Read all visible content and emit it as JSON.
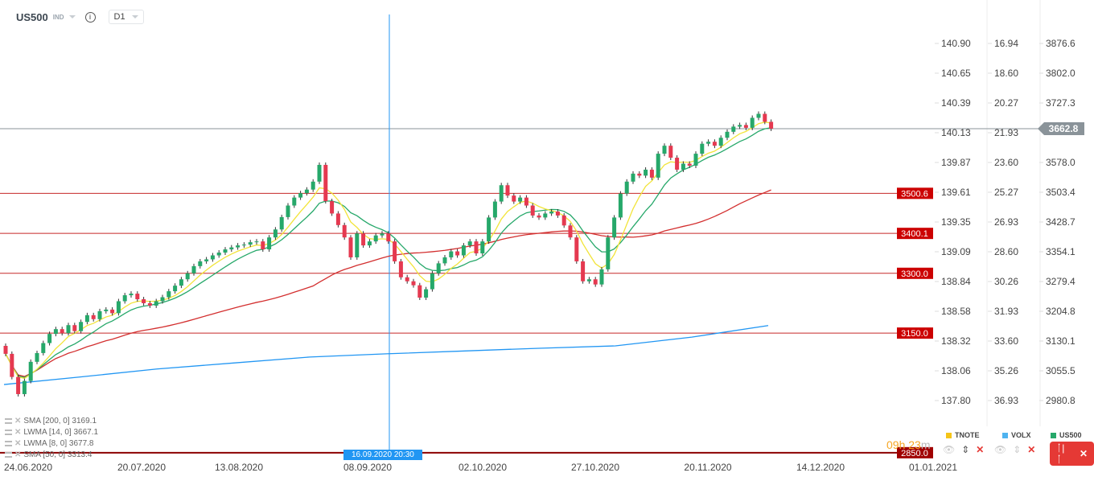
{
  "header": {
    "symbol": "US500",
    "type": "IND",
    "timeframe": "D1"
  },
  "indicators": [
    {
      "label": "SMA [200, 0] 3169.1",
      "color": "#2196f3"
    },
    {
      "label": "LWMA [14, 0] 3667.1",
      "color": "#26a86a"
    },
    {
      "label": "LWMA [8, 0] 3677.8",
      "color": "#f2e43a"
    },
    {
      "label": "SMA [50, 0] 3313.4",
      "color": "#d32f2f"
    }
  ],
  "crosshair_label": "16.09.2020 20:30",
  "timer": {
    "text": "09h 23",
    "suffix": "m"
  },
  "legend": [
    {
      "name": "TNOTE",
      "color": "#f5c518"
    },
    {
      "name": "VOLX",
      "color": "#4fb3f0"
    },
    {
      "name": "US500",
      "color": "#26a86a"
    }
  ],
  "axes": {
    "tnote": [
      "140.90",
      "140.65",
      "140.39",
      "140.13",
      "139.87",
      "139.61",
      "139.35",
      "139.09",
      "138.84",
      "138.58",
      "138.32",
      "138.06",
      "137.80"
    ],
    "volx": [
      "16.94",
      "18.60",
      "20.27",
      "21.93",
      "23.60",
      "25.27",
      "26.93",
      "28.60",
      "30.26",
      "31.93",
      "33.60",
      "35.26",
      "36.93"
    ],
    "us500": [
      "3876.6",
      "3802.0",
      "3727.3",
      "",
      "3578.0",
      "3503.4",
      "3428.7",
      "3354.1",
      "3279.4",
      "3204.8",
      "3130.1",
      "3055.5",
      "2980.8"
    ]
  },
  "dates": [
    "24.06.2020",
    "20.07.2020",
    "13.08.2020",
    "08.09.2020",
    "02.10.2020",
    "27.10.2020",
    "20.11.2020",
    "14.12.2020",
    "01.01.2021"
  ],
  "levels": [
    {
      "value": 3500.6,
      "label": "3500.6"
    },
    {
      "value": 3400.1,
      "label": "3400.1"
    },
    {
      "value": 3300.0,
      "label": "3300.0"
    },
    {
      "value": 3150.0,
      "label": "3150.0"
    },
    {
      "value": 2850.0,
      "label": "2850.0"
    }
  ],
  "current_price": {
    "value": 3662.8,
    "label": "3662.8"
  },
  "chart_data": {
    "type": "candlestick",
    "y_range": [
      2980.8,
      3876.6
    ],
    "closes": [
      3098,
      3040,
      2997,
      3030,
      3078,
      3100,
      3125,
      3148,
      3160,
      3150,
      3170,
      3155,
      3178,
      3195,
      3185,
      3205,
      3209,
      3200,
      3230,
      3245,
      3249,
      3235,
      3225,
      3219,
      3230,
      3240,
      3255,
      3269,
      3285,
      3300,
      3318,
      3330,
      3335,
      3345,
      3352,
      3360,
      3365,
      3370,
      3372,
      3378,
      3380,
      3360,
      3390,
      3410,
      3441,
      3470,
      3490,
      3501,
      3510,
      3530,
      3572,
      3481,
      3450,
      3421,
      3390,
      3340,
      3400,
      3370,
      3380,
      3395,
      3400,
      3380,
      3330,
      3290,
      3280,
      3270,
      3239,
      3260,
      3300,
      3325,
      3340,
      3355,
      3345,
      3370,
      3380,
      3350,
      3380,
      3440,
      3480,
      3521,
      3495,
      3480,
      3490,
      3470,
      3445,
      3440,
      3450,
      3455,
      3445,
      3420,
      3390,
      3330,
      3280,
      3285,
      3272,
      3310,
      3390,
      3440,
      3500,
      3530,
      3550,
      3545,
      3560,
      3540,
      3600,
      3620,
      3590,
      3560,
      3575,
      3570,
      3600,
      3625,
      3630,
      3620,
      3640,
      3655,
      3668,
      3672,
      3665,
      3690,
      3700,
      3680,
      3662.8
    ],
    "sma200": [
      3021,
      3040,
      3060,
      3075,
      3090,
      3098,
      3105,
      3112,
      3118,
      3140,
      3169
    ]
  }
}
